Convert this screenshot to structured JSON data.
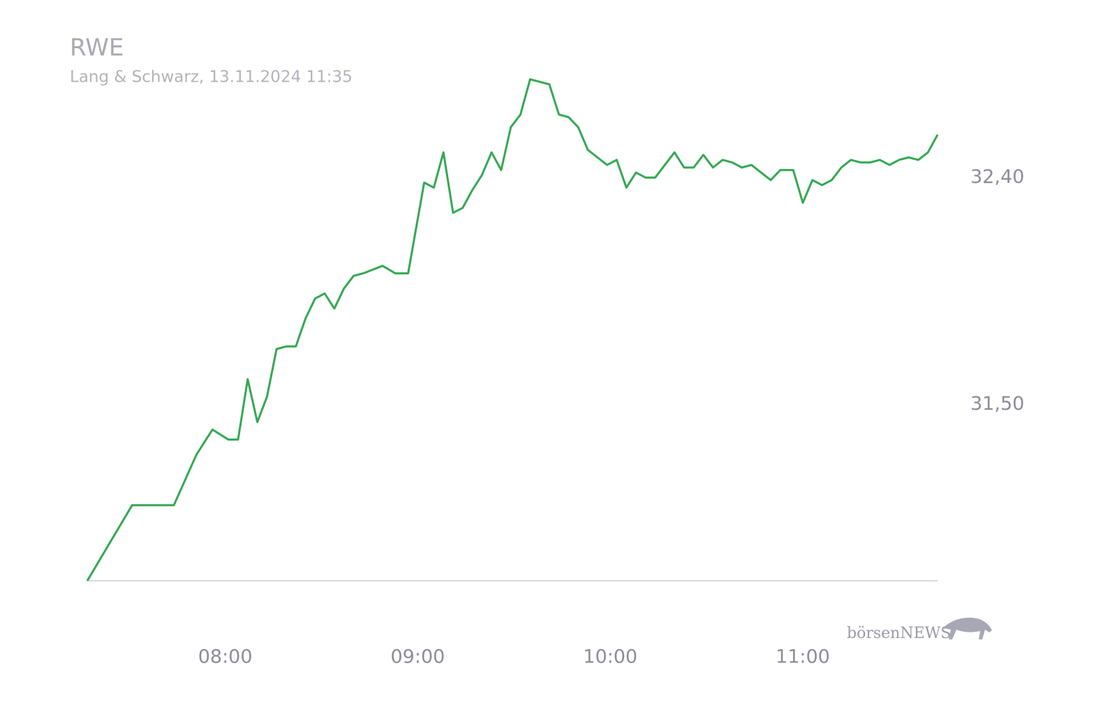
{
  "chart_data": {
    "type": "line",
    "title": "RWE",
    "subtitle": "Lang & Schwarz, 13.11.2024 11:35",
    "watermark": "börsenNEWS",
    "x": [
      "07:17",
      "07:31",
      "07:44",
      "07:51",
      "07:56",
      "08:01",
      "08:04",
      "08:07",
      "08:10",
      "08:13",
      "08:16",
      "08:19",
      "08:22",
      "08:25",
      "08:28",
      "08:31",
      "08:34",
      "08:37",
      "08:40",
      "08:43",
      "08:49",
      "08:53",
      "08:57",
      "09:02",
      "09:05",
      "09:08",
      "09:11",
      "09:14",
      "09:17",
      "09:20",
      "09:23",
      "09:26",
      "09:29",
      "09:32",
      "09:35",
      "09:38",
      "09:41",
      "09:44",
      "09:47",
      "09:50",
      "09:53",
      "09:56",
      "09:59",
      "10:02",
      "10:05",
      "10:08",
      "10:11",
      "10:14",
      "10:17",
      "10:20",
      "10:23",
      "10:26",
      "10:29",
      "10:32",
      "10:35",
      "10:38",
      "10:41",
      "10:44",
      "10:47",
      "10:50",
      "10:53",
      "10:57",
      "11:00",
      "11:03",
      "11:06",
      "11:09",
      "11:12",
      "11:15",
      "11:18",
      "11:21",
      "11:24",
      "11:27",
      "11:30",
      "11:33",
      "11:36",
      "11:39",
      "11:42"
    ],
    "series": [
      {
        "name": "RWE",
        "color": "#34a853",
        "values": [
          30.8,
          31.1,
          31.1,
          31.3,
          31.4,
          31.36,
          31.36,
          31.6,
          31.43,
          31.53,
          31.72,
          31.73,
          31.73,
          31.84,
          31.92,
          31.94,
          31.88,
          31.96,
          32.01,
          32.02,
          32.05,
          32.02,
          32.02,
          32.38,
          32.36,
          32.5,
          32.26,
          32.28,
          32.35,
          32.41,
          32.5,
          32.43,
          32.6,
          32.65,
          32.79,
          32.78,
          32.77,
          32.65,
          32.64,
          32.6,
          32.51,
          32.48,
          32.45,
          32.47,
          32.36,
          32.42,
          32.4,
          32.4,
          32.45,
          32.5,
          32.44,
          32.44,
          32.49,
          32.44,
          32.47,
          32.46,
          32.44,
          32.45,
          32.42,
          32.39,
          32.43,
          32.43,
          32.3,
          32.39,
          32.37,
          32.39,
          32.44,
          32.47,
          32.46,
          32.46,
          32.47,
          32.45,
          32.47,
          32.48,
          32.47,
          32.5,
          32.57
        ]
      }
    ],
    "xlim": [
      "07:17",
      "11:42"
    ],
    "xticks": [
      "08:00",
      "09:00",
      "10:00",
      "11:00"
    ],
    "ylim": [
      30.8,
      32.8
    ],
    "yticks": [
      {
        "value": 31.5,
        "label": "31,50"
      },
      {
        "value": 32.4,
        "label": "32,40"
      }
    ],
    "grid": false
  }
}
